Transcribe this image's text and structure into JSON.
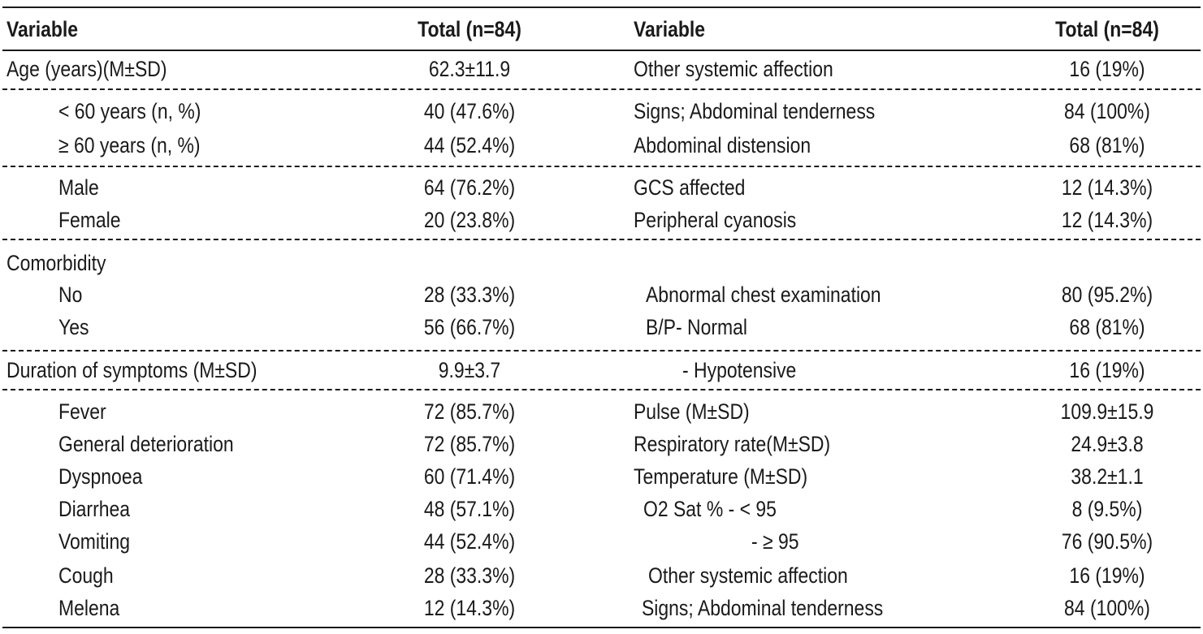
{
  "table": {
    "header": {
      "variable_left": "Variable",
      "total_left": "Total (n=84)",
      "variable_right": "Variable",
      "total_right": "Total (n=84)"
    },
    "rows": [
      {
        "l_label": "Age (years)(M±SD)",
        "l_value": "62.3±11.9",
        "r_label": "Other systemic affection",
        "r_value": "16 (19%)"
      },
      {
        "l_label": "< 60 years (n, %)",
        "l_value": "40 (47.6%)",
        "r_label": "Signs; Abdominal tenderness",
        "r_value": "84 (100%)"
      },
      {
        "l_label": "≥ 60 years (n, %)",
        "l_value": "44 (52.4%)",
        "r_label": "Abdominal distension",
        "r_value": "68 (81%)"
      },
      {
        "l_label": "Male",
        "l_value": "64 (76.2%)",
        "r_label": "GCS affected",
        "r_value": "12 (14.3%)"
      },
      {
        "l_label": "Female",
        "l_value": "20 (23.8%)",
        "r_label": "Peripheral cyanosis",
        "r_value": "12 (14.3%)"
      },
      {
        "l_label": "Comorbidity",
        "l_value": "",
        "r_label": "",
        "r_value": ""
      },
      {
        "l_label": "No",
        "l_value": "28 (33.3%)",
        "r_label": "Abnormal chest examination",
        "r_value": "80 (95.2%)"
      },
      {
        "l_label": "Yes",
        "l_value": "56 (66.7%)",
        "r_label": "B/P- Normal",
        "r_value": "68 (81%)"
      },
      {
        "l_label": "Duration of symptoms (M±SD)",
        "l_value": "9.9±3.7",
        "r_label": "- Hypotensive",
        "r_value": "16 (19%)"
      },
      {
        "l_label": "Fever",
        "l_value": "72 (85.7%)",
        "r_label": "Pulse (M±SD)",
        "r_value": "109.9±15.9"
      },
      {
        "l_label": "General deterioration",
        "l_value": "72 (85.7%)",
        "r_label": "Respiratory rate(M±SD)",
        "r_value": "24.9±3.8"
      },
      {
        "l_label": "Dyspnoea",
        "l_value": "60 (71.4%)",
        "r_label": "Temperature (M±SD)",
        "r_value": "38.2±1.1"
      },
      {
        "l_label": "Diarrhea",
        "l_value": "48 (57.1%)",
        "r_label": "O2 Sat % - < 95",
        "r_value": "8 (9.5%)"
      },
      {
        "l_label": "Vomiting",
        "l_value": "44 (52.4%)",
        "r_label": "- ≥ 95",
        "r_value": "76 (90.5%)"
      },
      {
        "l_label": "Cough",
        "l_value": "28 (33.3%)",
        "r_label": "Other systemic affection",
        "r_value": "16 (19%)"
      },
      {
        "l_label": "Melena",
        "l_value": "12 (14.3%)",
        "r_label": "Signs; Abdominal tenderness",
        "r_value": "84 (100%)"
      }
    ]
  }
}
